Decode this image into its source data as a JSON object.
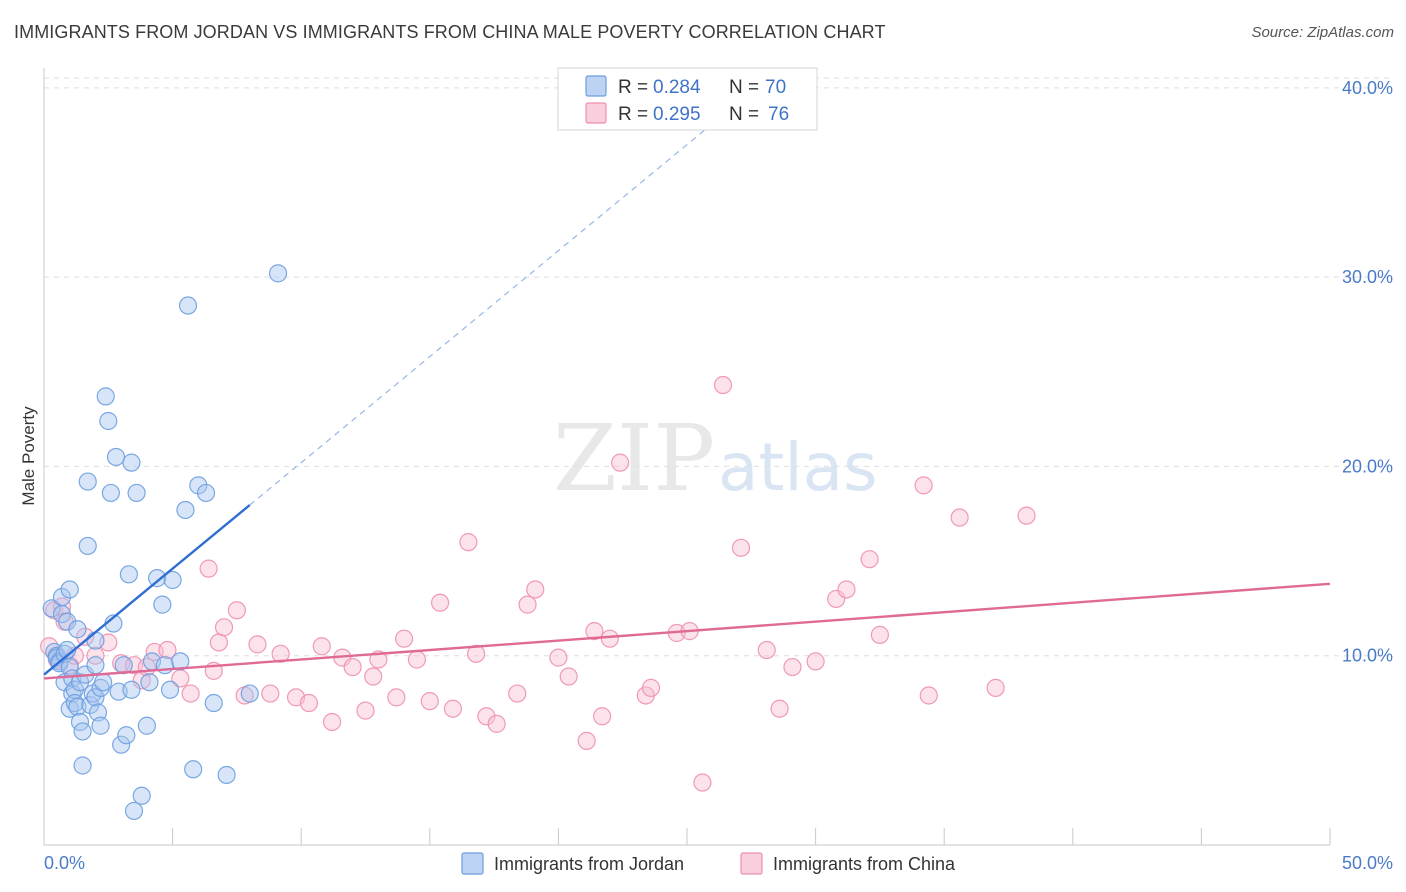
{
  "header": {
    "title": "IMMIGRANTS FROM JORDAN VS IMMIGRANTS FROM CHINA MALE POVERTY CORRELATION CHART",
    "source": "Source: ZipAtlas.com"
  },
  "watermark": {
    "zip": "ZIP",
    "atlas": "atlas"
  },
  "legend_box": {
    "rows": [
      {
        "r_label": "R =",
        "r_value": "0.284",
        "n_label": "N =",
        "n_value": "70",
        "color": "#6b9ee0"
      },
      {
        "r_label": "R =",
        "r_value": "0.295",
        "n_label": "N =",
        "n_value": "76",
        "color": "#ef8fae"
      }
    ]
  },
  "chart_data": {
    "type": "scatter",
    "title": "IMMIGRANTS FROM JORDAN VS IMMIGRANTS FROM CHINA MALE POVERTY CORRELATION CHART",
    "xlabel": "",
    "ylabel": "Male Poverty",
    "xlim": [
      0,
      50
    ],
    "ylim": [
      0,
      42
    ],
    "x_tick_labels": [
      "0.0%",
      "50.0%"
    ],
    "y_ticks": [
      10,
      20,
      30,
      40
    ],
    "y_tick_labels": [
      "10.0%",
      "20.0%",
      "30.0%",
      "40.0%"
    ],
    "grid": true,
    "legend_position": "top-center",
    "series": [
      {
        "name": "Immigrants from Jordan",
        "color": "#6b9ee0",
        "line_color": "#2f6fd1",
        "R": 0.284,
        "N": 70,
        "trend": {
          "x0": 0,
          "y0": 9.0,
          "x_solid_end": 8,
          "x_dash_end": 27,
          "slope": 1.12
        },
        "points": [
          [
            0.3,
            12.5
          ],
          [
            0.4,
            10.2
          ],
          [
            0.5,
            10.0
          ],
          [
            0.5,
            9.9
          ],
          [
            0.6,
            9.7
          ],
          [
            0.6,
            9.6
          ],
          [
            0.7,
            13.1
          ],
          [
            0.7,
            12.2
          ],
          [
            0.8,
            8.6
          ],
          [
            0.8,
            10.1
          ],
          [
            0.9,
            11.8
          ],
          [
            0.9,
            10.3
          ],
          [
            1.0,
            9.4
          ],
          [
            1.0,
            7.2
          ],
          [
            1.1,
            8.8
          ],
          [
            1.1,
            8.0
          ],
          [
            1.2,
            8.2
          ],
          [
            1.2,
            7.5
          ],
          [
            1.3,
            7.3
          ],
          [
            1.3,
            11.4
          ],
          [
            1.4,
            8.6
          ],
          [
            1.4,
            6.5
          ],
          [
            1.5,
            6.0
          ],
          [
            1.5,
            4.2
          ],
          [
            1.6,
            9.0
          ],
          [
            1.7,
            15.8
          ],
          [
            1.7,
            19.2
          ],
          [
            1.8,
            7.4
          ],
          [
            1.9,
            8.0
          ],
          [
            2.0,
            7.8
          ],
          [
            2.0,
            9.5
          ],
          [
            2.0,
            10.8
          ],
          [
            2.1,
            7.0
          ],
          [
            2.2,
            6.3
          ],
          [
            2.2,
            8.3
          ],
          [
            2.3,
            8.6
          ],
          [
            2.4,
            23.7
          ],
          [
            2.5,
            22.4
          ],
          [
            2.6,
            18.6
          ],
          [
            2.7,
            11.7
          ],
          [
            2.8,
            20.5
          ],
          [
            2.9,
            8.1
          ],
          [
            3.0,
            5.3
          ],
          [
            3.1,
            9.5
          ],
          [
            3.2,
            5.8
          ],
          [
            3.3,
            14.3
          ],
          [
            3.4,
            20.2
          ],
          [
            3.4,
            8.2
          ],
          [
            3.5,
            1.8
          ],
          [
            3.6,
            18.6
          ],
          [
            3.8,
            2.6
          ],
          [
            4.0,
            6.3
          ],
          [
            4.1,
            8.6
          ],
          [
            4.2,
            9.7
          ],
          [
            4.4,
            14.1
          ],
          [
            4.6,
            12.7
          ],
          [
            4.7,
            9.5
          ],
          [
            4.9,
            8.2
          ],
          [
            5.0,
            14.0
          ],
          [
            5.3,
            9.7
          ],
          [
            5.5,
            17.7
          ],
          [
            5.6,
            28.5
          ],
          [
            5.8,
            4.0
          ],
          [
            6.0,
            19.0
          ],
          [
            6.3,
            18.6
          ],
          [
            6.6,
            7.5
          ],
          [
            7.1,
            3.7
          ],
          [
            8.0,
            8.0
          ],
          [
            9.1,
            30.2
          ],
          [
            1.0,
            13.5
          ]
        ]
      },
      {
        "name": "Immigrants from China",
        "color": "#ef8fae",
        "line_color": "#e06a96",
        "R": 0.295,
        "N": 76,
        "trend": {
          "x0": 0,
          "y0": 8.8,
          "x_end": 50,
          "y_end": 13.8
        },
        "points": [
          [
            0.2,
            10.5
          ],
          [
            0.4,
            12.4
          ],
          [
            0.5,
            9.8
          ],
          [
            0.7,
            12.6
          ],
          [
            0.8,
            11.8
          ],
          [
            1.0,
            9.5
          ],
          [
            1.2,
            10.0
          ],
          [
            1.6,
            11.0
          ],
          [
            2.0,
            10.0
          ],
          [
            2.5,
            10.7
          ],
          [
            3.0,
            9.6
          ],
          [
            3.5,
            9.5
          ],
          [
            3.8,
            8.7
          ],
          [
            4.0,
            9.4
          ],
          [
            4.3,
            10.2
          ],
          [
            4.8,
            10.3
          ],
          [
            5.3,
            8.8
          ],
          [
            5.7,
            8.0
          ],
          [
            6.4,
            14.6
          ],
          [
            6.6,
            9.2
          ],
          [
            6.8,
            10.7
          ],
          [
            7.0,
            11.5
          ],
          [
            7.5,
            12.4
          ],
          [
            7.8,
            7.9
          ],
          [
            8.3,
            10.6
          ],
          [
            8.8,
            8.0
          ],
          [
            9.2,
            10.1
          ],
          [
            9.8,
            7.8
          ],
          [
            10.3,
            7.5
          ],
          [
            10.8,
            10.5
          ],
          [
            11.2,
            6.5
          ],
          [
            11.6,
            9.9
          ],
          [
            12.0,
            9.4
          ],
          [
            12.5,
            7.1
          ],
          [
            12.8,
            8.9
          ],
          [
            13.0,
            9.8
          ],
          [
            13.7,
            7.8
          ],
          [
            14.0,
            10.9
          ],
          [
            14.5,
            9.8
          ],
          [
            15.0,
            7.6
          ],
          [
            15.4,
            12.8
          ],
          [
            15.9,
            7.2
          ],
          [
            16.5,
            16.0
          ],
          [
            16.8,
            10.1
          ],
          [
            17.2,
            6.8
          ],
          [
            17.6,
            6.4
          ],
          [
            18.4,
            8.0
          ],
          [
            18.8,
            12.7
          ],
          [
            19.1,
            13.5
          ],
          [
            20.0,
            9.9
          ],
          [
            20.4,
            8.9
          ],
          [
            21.1,
            5.5
          ],
          [
            21.4,
            11.3
          ],
          [
            21.7,
            6.8
          ],
          [
            22.0,
            10.9
          ],
          [
            22.4,
            20.2
          ],
          [
            23.4,
            7.9
          ],
          [
            23.6,
            8.3
          ],
          [
            24.6,
            11.2
          ],
          [
            25.1,
            11.3
          ],
          [
            25.6,
            3.3
          ],
          [
            26.4,
            24.3
          ],
          [
            27.1,
            15.7
          ],
          [
            28.1,
            10.3
          ],
          [
            28.6,
            7.2
          ],
          [
            29.1,
            9.4
          ],
          [
            30.0,
            9.7
          ],
          [
            30.8,
            13.0
          ],
          [
            31.2,
            13.5
          ],
          [
            32.1,
            15.1
          ],
          [
            32.5,
            11.1
          ],
          [
            34.2,
            19.0
          ],
          [
            34.4,
            7.9
          ],
          [
            35.6,
            17.3
          ],
          [
            37.0,
            8.3
          ],
          [
            38.2,
            17.4
          ]
        ]
      }
    ]
  },
  "bottom_legend": {
    "items": [
      {
        "label": "Immigrants from Jordan",
        "color": "#6b9ee0"
      },
      {
        "label": "Immigrants from China",
        "color": "#ef8fae"
      }
    ]
  }
}
